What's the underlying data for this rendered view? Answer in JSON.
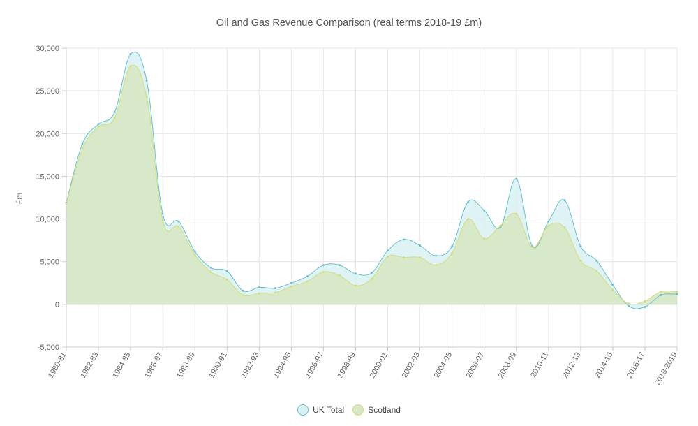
{
  "chart_data": {
    "type": "area",
    "title": "Oil and Gas Revenue Comparison (real terms 2018-19 £m)",
    "xlabel": "",
    "ylabel": "£m",
    "ylim": [
      -5000,
      30000
    ],
    "y_ticks": [
      -5000,
      0,
      5000,
      10000,
      15000,
      20000,
      25000,
      30000
    ],
    "y_tick_labels": [
      "-5,000",
      "0",
      "5,000",
      "10,000",
      "15,000",
      "20,000",
      "25,000",
      "30,000"
    ],
    "x_tick_labels": [
      "1980-81",
      "1982-83",
      "1984-85",
      "1986-87",
      "1988-89",
      "1990-91",
      "1992-93",
      "1994-95",
      "1996-97",
      "1998-99",
      "2000-01",
      "2002-03",
      "2004-05",
      "2006-07",
      "2008-09",
      "2010-11",
      "2012-13",
      "2014-15",
      "2016-17",
      "2018-2019"
    ],
    "grid": true,
    "legend_position": "bottom-center",
    "x": [
      "1980-81",
      "1981-82",
      "1982-83",
      "1983-84",
      "1984-85",
      "1985-86",
      "1986-87",
      "1987-88",
      "1988-89",
      "1989-90",
      "1990-91",
      "1991-92",
      "1992-93",
      "1993-94",
      "1994-95",
      "1995-96",
      "1996-97",
      "1997-98",
      "1998-99",
      "1999-00",
      "2000-01",
      "2001-02",
      "2002-03",
      "2003-04",
      "2004-05",
      "2005-06",
      "2006-07",
      "2007-08",
      "2008-09",
      "2009-10",
      "2010-11",
      "2011-12",
      "2012-13",
      "2013-14",
      "2014-15",
      "2015-16",
      "2016-17",
      "2017-18",
      "2018-2019"
    ],
    "series": [
      {
        "name": "UK Total",
        "color": "#63c3cf",
        "fill": "#d9f0f2",
        "values": [
          11900,
          18800,
          21100,
          22500,
          29300,
          26200,
          10600,
          9700,
          6200,
          4300,
          3900,
          1600,
          2000,
          1900,
          2500,
          3300,
          4600,
          4600,
          3600,
          3700,
          6300,
          7600,
          6900,
          5700,
          6800,
          12000,
          11000,
          9000,
          14700,
          6800,
          9700,
          12200,
          6800,
          5100,
          2300,
          -200,
          -300,
          1100,
          1200
        ]
      },
      {
        "name": "Scotland",
        "color": "#d4de70",
        "fill": "#d6e8c4",
        "values": [
          11800,
          18200,
          20800,
          21800,
          27900,
          24300,
          9800,
          9100,
          5800,
          3800,
          2900,
          1100,
          1300,
          1400,
          2100,
          2700,
          3800,
          3400,
          2200,
          3000,
          5600,
          5500,
          5500,
          4600,
          6000,
          10000,
          7700,
          9200,
          10600,
          6700,
          9200,
          9000,
          5100,
          3900,
          1700,
          100,
          400,
          1500,
          1500
        ]
      }
    ]
  }
}
